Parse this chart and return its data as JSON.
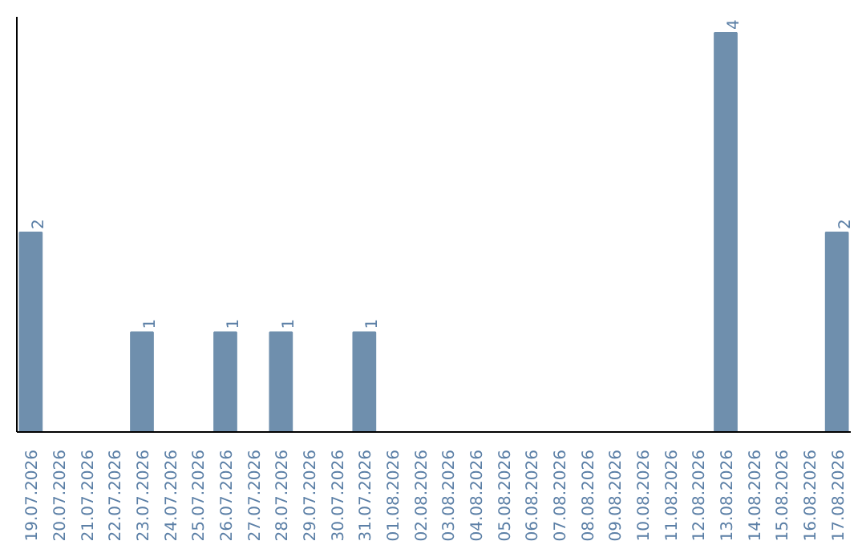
{
  "chart_data": {
    "type": "bar",
    "categories": [
      "19.07.2026",
      "20.07.2026",
      "21.07.2026",
      "22.07.2026",
      "23.07.2026",
      "24.07.2026",
      "25.07.2026",
      "26.07.2026",
      "27.07.2026",
      "28.07.2026",
      "29.07.2026",
      "30.07.2026",
      "31.07.2026",
      "01.08.2026",
      "02.08.2026",
      "03.08.2026",
      "04.08.2026",
      "05.08.2026",
      "06.08.2026",
      "07.08.2026",
      "08.08.2026",
      "09.08.2026",
      "10.08.2026",
      "11.08.2026",
      "12.08.2026",
      "13.08.2026",
      "14.08.2026",
      "15.08.2026",
      "16.08.2026",
      "17.08.2026"
    ],
    "values": [
      2,
      0,
      0,
      0,
      1,
      0,
      0,
      1,
      0,
      1,
      0,
      0,
      1,
      0,
      0,
      0,
      0,
      0,
      0,
      0,
      0,
      0,
      0,
      0,
      0,
      4,
      0,
      0,
      0,
      2
    ],
    "value_labels": [
      "2",
      null,
      null,
      null,
      "1",
      null,
      null,
      "1",
      null,
      "1",
      null,
      null,
      "1",
      null,
      null,
      null,
      null,
      null,
      null,
      null,
      null,
      null,
      null,
      null,
      null,
      "4",
      null,
      null,
      null,
      "2"
    ],
    "color": "#6f8fad",
    "grid": false,
    "tick_labels": "x"
  }
}
